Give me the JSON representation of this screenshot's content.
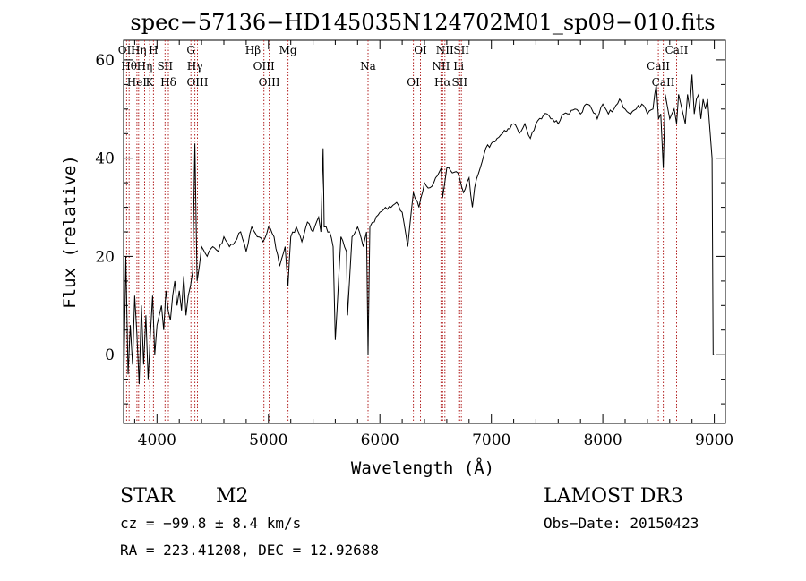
{
  "chart_data": {
    "type": "line",
    "title": "spec−57136−HD145035N124702M01_sp09−010.fits",
    "xlabel": "Wavelength (Å)",
    "ylabel": "Flux (relative)",
    "xlim": [
      3700,
      9100
    ],
    "ylim": [
      -14,
      64
    ],
    "xticks": [
      4000,
      5000,
      6000,
      7000,
      8000,
      9000
    ],
    "yticks": [
      0,
      20,
      40,
      60
    ],
    "grid": false,
    "series_color": "#000000",
    "line_marker_color": "#b22222",
    "series": [
      {
        "x": [
          3700,
          3720,
          3740,
          3760,
          3780,
          3800,
          3820,
          3840,
          3860,
          3880,
          3900,
          3920,
          3940,
          3960,
          3980,
          4000,
          4020,
          4040,
          4060,
          4080,
          4100,
          4120,
          4140,
          4160,
          4180,
          4200,
          4220,
          4240,
          4260,
          4280,
          4300,
          4320,
          4340,
          4360,
          4380,
          4400,
          4450,
          4500,
          4550,
          4600,
          4650,
          4700,
          4750,
          4800,
          4850,
          4900,
          4950,
          5000,
          5050,
          5100,
          5150,
          5175,
          5200,
          5250,
          5300,
          5350,
          5400,
          5450,
          5470,
          5490,
          5500,
          5550,
          5580,
          5600,
          5650,
          5700,
          5710,
          5750,
          5800,
          5850,
          5880,
          5894,
          5910,
          5950,
          6000,
          6050,
          6100,
          6150,
          6200,
          6250,
          6300,
          6350,
          6400,
          6450,
          6500,
          6550,
          6563,
          6600,
          6650,
          6700,
          6750,
          6800,
          6830,
          6850,
          6900,
          6950,
          7000,
          7050,
          7100,
          7150,
          7200,
          7250,
          7300,
          7350,
          7400,
          7450,
          7500,
          7550,
          7600,
          7650,
          7700,
          7750,
          7800,
          7850,
          7900,
          7950,
          8000,
          8050,
          8100,
          8150,
          8200,
          8250,
          8300,
          8350,
          8400,
          8450,
          8480,
          8500,
          8520,
          8542,
          8560,
          8600,
          8640,
          8662,
          8680,
          8700,
          8720,
          8740,
          8760,
          8780,
          8800,
          8820,
          8840,
          8860,
          8880,
          8900,
          8920,
          8940,
          8960,
          8980,
          8990,
          9000
        ],
        "y": [
          -8,
          20,
          -4,
          6,
          -2,
          12,
          4,
          -6,
          10,
          -2,
          8,
          -5,
          4,
          12,
          0,
          6,
          8,
          10,
          5,
          13,
          9,
          7,
          12,
          15,
          10,
          13,
          9,
          16,
          8,
          12,
          14,
          17,
          43,
          15,
          18,
          22,
          20,
          22,
          21,
          24,
          22,
          23,
          25,
          21,
          26,
          24,
          23,
          26,
          24,
          18,
          22,
          14,
          24,
          26,
          23,
          27,
          25,
          28,
          25,
          42,
          26,
          25,
          22,
          3,
          24,
          21,
          8,
          24,
          26,
          22,
          25,
          0,
          26,
          27,
          29,
          30,
          30,
          31,
          29,
          22,
          33,
          30,
          35,
          34,
          36,
          38,
          32,
          38,
          37,
          37,
          33,
          36,
          30,
          34,
          38,
          42,
          43,
          44,
          45,
          46,
          47,
          45,
          47,
          44,
          47,
          48,
          49,
          48,
          47,
          49,
          49,
          50,
          49,
          51,
          50,
          48,
          51,
          49,
          50,
          52,
          50,
          49,
          50,
          51,
          49,
          50,
          55,
          48,
          49,
          38,
          53,
          48,
          50,
          47,
          53,
          51,
          49,
          47,
          53,
          50,
          57,
          49,
          52,
          53,
          48,
          52,
          50,
          52,
          46,
          40,
          0,
          0
        ]
      }
    ],
    "spectral_lines": [
      {
        "wl": 3727,
        "labels": [
          "OII"
        ]
      },
      {
        "wl": 3750,
        "labels": [
          "Hθ"
        ]
      },
      {
        "wl": 3820,
        "labels": [
          "HeI"
        ]
      },
      {
        "wl": 3835,
        "labels": [
          "Hη"
        ]
      },
      {
        "wl": 3889,
        "labels": [
          "Hη"
        ]
      },
      {
        "wl": 3934,
        "labels": [
          "K"
        ]
      },
      {
        "wl": 3968,
        "labels": [
          "H"
        ]
      },
      {
        "wl": 4072,
        "labels": [
          "SII"
        ]
      },
      {
        "wl": 4102,
        "labels": [
          "Hδ"
        ]
      },
      {
        "wl": 4304,
        "labels": [
          "G"
        ]
      },
      {
        "wl": 4340,
        "labels": [
          "Hγ"
        ]
      },
      {
        "wl": 4363,
        "labels": [
          "OIII"
        ]
      },
      {
        "wl": 4861,
        "labels": [
          "Hβ"
        ]
      },
      {
        "wl": 4959,
        "labels": [
          "OIII"
        ]
      },
      {
        "wl": 5007,
        "labels": [
          "OIII"
        ]
      },
      {
        "wl": 5175,
        "labels": [
          "Mg"
        ]
      },
      {
        "wl": 5894,
        "labels": [
          "Na"
        ]
      },
      {
        "wl": 6300,
        "labels": [
          "OI"
        ]
      },
      {
        "wl": 6364,
        "labels": [
          "OI"
        ]
      },
      {
        "wl": 6548,
        "labels": [
          "NII"
        ]
      },
      {
        "wl": 6563,
        "labels": [
          "Hα"
        ]
      },
      {
        "wl": 6583,
        "labels": [
          "NII"
        ]
      },
      {
        "wl": 6707,
        "labels": [
          "Li"
        ]
      },
      {
        "wl": 6716,
        "labels": [
          "SII"
        ]
      },
      {
        "wl": 6731,
        "labels": [
          "SII"
        ]
      },
      {
        "wl": 8498,
        "labels": [
          "CaII"
        ]
      },
      {
        "wl": 8542,
        "labels": [
          "CaII"
        ]
      },
      {
        "wl": 8662,
        "labels": [
          "CaII"
        ]
      }
    ]
  },
  "footer": {
    "class": "STAR",
    "subclass": "M2",
    "survey": "LAMOST DR3",
    "cz": "cz = −99.8 ± 8.4 km/s",
    "obs_date": "Obs−Date: 20150423",
    "radec": "RA = 223.41208, DEC =  12.92688"
  }
}
